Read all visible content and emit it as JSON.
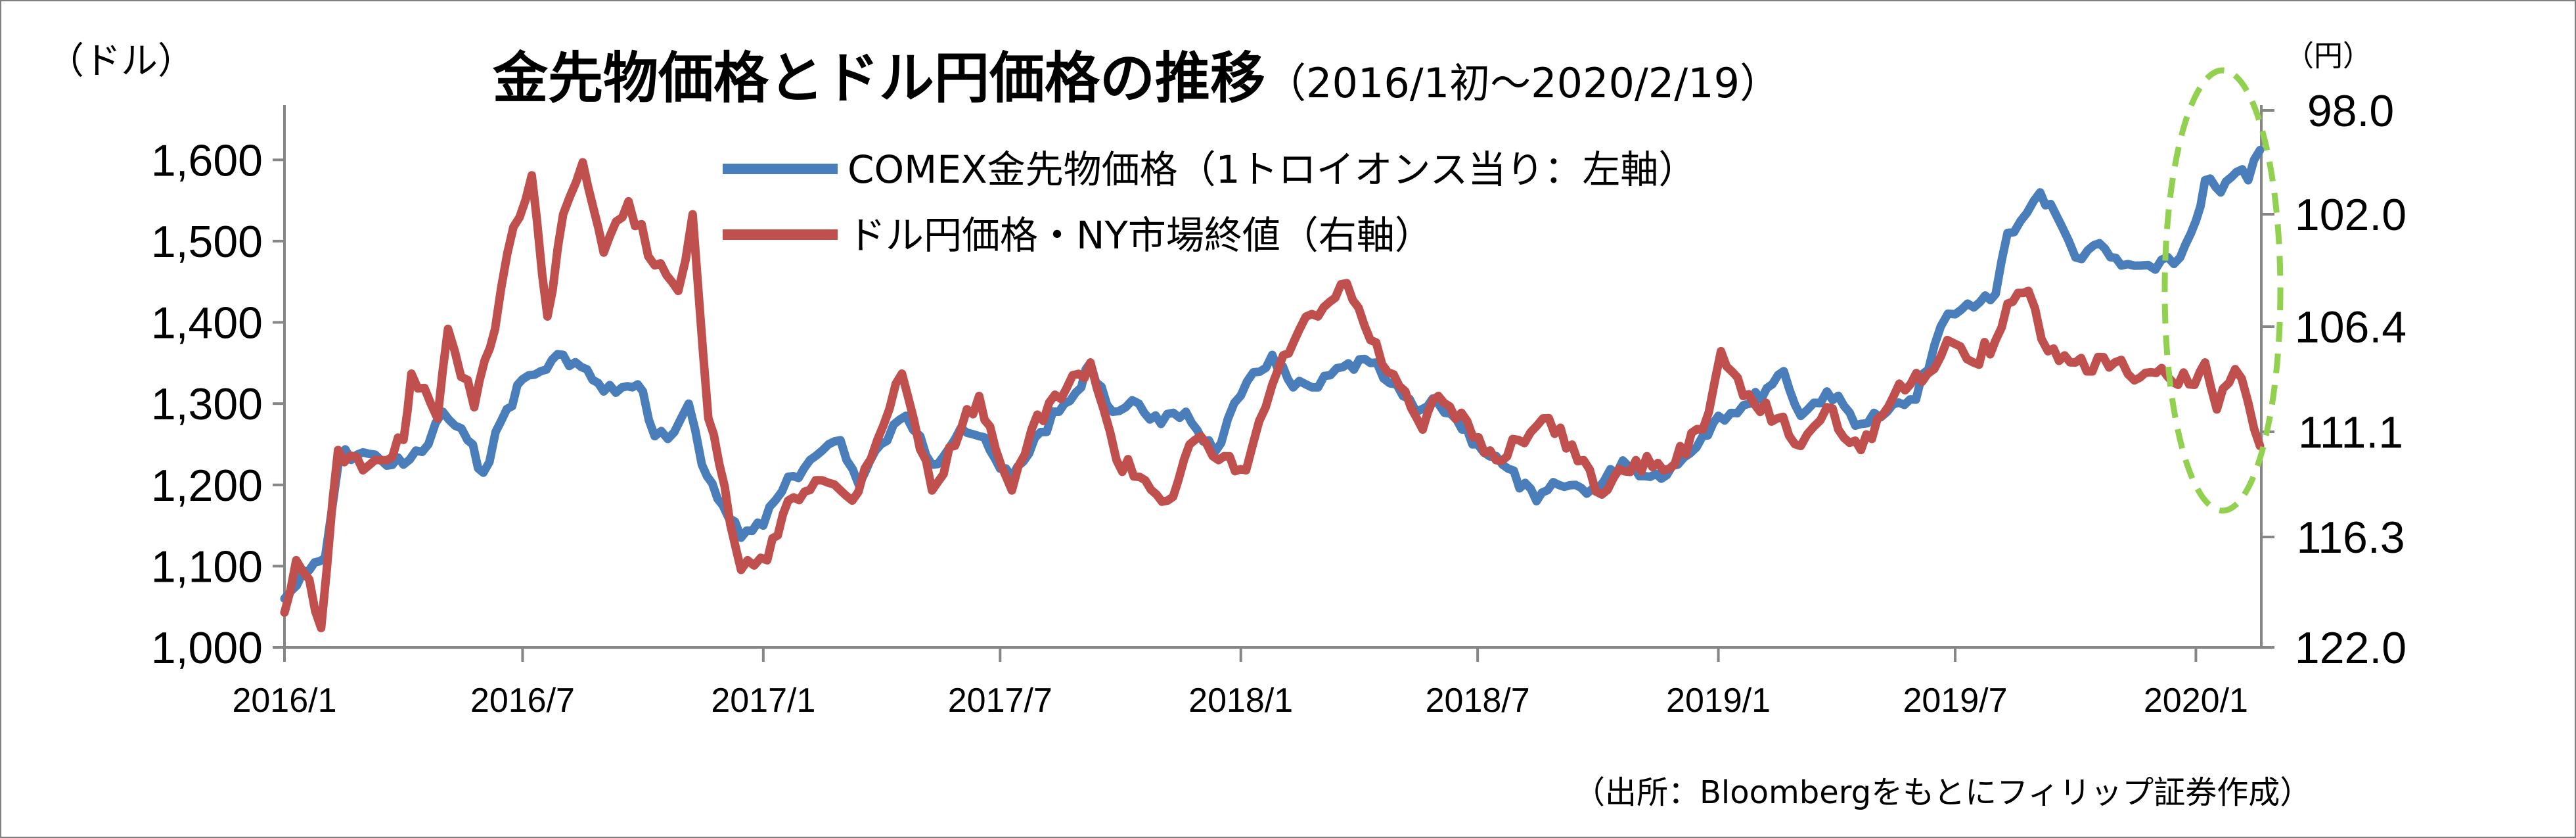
{
  "chart_data": {
    "type": "line",
    "title": "金先物価格とドル円価格の推移",
    "subtitle": "（2016/1初～2020/2/19）",
    "left_unit": "（ドル）",
    "right_unit": "（円）",
    "source": "（出所：Bloombergをもとにフィリップ証券作成）",
    "y_left": {
      "range": [
        1000,
        1650
      ],
      "ticks": [
        1000,
        1100,
        1200,
        1300,
        1400,
        1500,
        1600
      ],
      "tick_labels": [
        "1,000",
        "1,100",
        "1,200",
        "1,300",
        "1,400",
        "1,500",
        "1,600"
      ]
    },
    "y_right": {
      "inverted": true,
      "range": [
        122.0,
        97.0
      ],
      "ticks": [
        122.0,
        116.3,
        111.1,
        106.4,
        102.0,
        98.0
      ],
      "tick_labels": [
        "122.0",
        "116.3",
        "111.1",
        "106.4",
        "102.0",
        "98.0"
      ]
    },
    "x": {
      "range": [
        "2016-01-01",
        "2020-02-19"
      ],
      "ticks": [
        "2016-01-01",
        "2016-07-01",
        "2017-01-01",
        "2017-07-01",
        "2018-01-01",
        "2018-07-01",
        "2019-01-01",
        "2019-07-01",
        "2020-01-01"
      ],
      "tick_labels": [
        "2016/1",
        "2016/7",
        "2017/1",
        "2017/7",
        "2018/1",
        "2018/7",
        "2019/1",
        "2019/7",
        "2020/1"
      ]
    },
    "series": [
      {
        "name": "COMEX金先物価格（1トロイオンス当り：左軸）",
        "axis": "left",
        "color": "#4a7ebb",
        "points": [
          [
            "2016-01-01",
            1060
          ],
          [
            "2016-01-20",
            1095
          ],
          [
            "2016-02-01",
            1110
          ],
          [
            "2016-02-12",
            1235
          ],
          [
            "2016-03-01",
            1240
          ],
          [
            "2016-03-15",
            1230
          ],
          [
            "2016-04-01",
            1225
          ],
          [
            "2016-04-20",
            1250
          ],
          [
            "2016-05-01",
            1290
          ],
          [
            "2016-05-20",
            1255
          ],
          [
            "2016-06-01",
            1215
          ],
          [
            "2016-06-15",
            1280
          ],
          [
            "2016-07-01",
            1330
          ],
          [
            "2016-07-15",
            1340
          ],
          [
            "2016-08-01",
            1360
          ],
          [
            "2016-08-15",
            1345
          ],
          [
            "2016-09-01",
            1315
          ],
          [
            "2016-09-15",
            1320
          ],
          [
            "2016-10-01",
            1315
          ],
          [
            "2016-10-10",
            1260
          ],
          [
            "2016-10-25",
            1265
          ],
          [
            "2016-11-05",
            1300
          ],
          [
            "2016-11-15",
            1225
          ],
          [
            "2016-12-01",
            1175
          ],
          [
            "2016-12-15",
            1135
          ],
          [
            "2017-01-01",
            1150
          ],
          [
            "2017-01-20",
            1210
          ],
          [
            "2017-02-01",
            1220
          ],
          [
            "2017-02-20",
            1250
          ],
          [
            "2017-03-01",
            1255
          ],
          [
            "2017-03-15",
            1200
          ],
          [
            "2017-04-01",
            1250
          ],
          [
            "2017-04-20",
            1285
          ],
          [
            "2017-05-01",
            1260
          ],
          [
            "2017-05-10",
            1225
          ],
          [
            "2017-06-01",
            1270
          ],
          [
            "2017-06-15",
            1260
          ],
          [
            "2017-07-01",
            1220
          ],
          [
            "2017-07-10",
            1210
          ],
          [
            "2017-08-01",
            1265
          ],
          [
            "2017-08-15",
            1290
          ],
          [
            "2017-09-01",
            1320
          ],
          [
            "2017-09-08",
            1350
          ],
          [
            "2017-09-25",
            1290
          ],
          [
            "2017-10-15",
            1300
          ],
          [
            "2017-11-01",
            1275
          ],
          [
            "2017-11-20",
            1290
          ],
          [
            "2017-12-12",
            1240
          ],
          [
            "2018-01-01",
            1310
          ],
          [
            "2018-01-25",
            1360
          ],
          [
            "2018-02-10",
            1320
          ],
          [
            "2018-03-01",
            1320
          ],
          [
            "2018-03-20",
            1345
          ],
          [
            "2018-04-10",
            1350
          ],
          [
            "2018-04-25",
            1325
          ],
          [
            "2018-05-15",
            1290
          ],
          [
            "2018-06-01",
            1300
          ],
          [
            "2018-06-15",
            1280
          ],
          [
            "2018-07-01",
            1250
          ],
          [
            "2018-07-20",
            1225
          ],
          [
            "2018-08-15",
            1180
          ],
          [
            "2018-09-01",
            1200
          ],
          [
            "2018-10-01",
            1195
          ],
          [
            "2018-10-20",
            1230
          ],
          [
            "2018-11-10",
            1210
          ],
          [
            "2018-12-01",
            1225
          ],
          [
            "2018-12-20",
            1260
          ],
          [
            "2019-01-01",
            1285
          ],
          [
            "2019-01-25",
            1300
          ],
          [
            "2019-02-20",
            1340
          ],
          [
            "2019-03-05",
            1285
          ],
          [
            "2019-03-25",
            1315
          ],
          [
            "2019-04-20",
            1275
          ],
          [
            "2019-05-10",
            1290
          ],
          [
            "2019-06-01",
            1305
          ],
          [
            "2019-06-20",
            1395
          ],
          [
            "2019-07-01",
            1410
          ],
          [
            "2019-07-20",
            1425
          ],
          [
            "2019-08-01",
            1435
          ],
          [
            "2019-08-10",
            1510
          ],
          [
            "2019-08-25",
            1535
          ],
          [
            "2019-09-04",
            1560
          ],
          [
            "2019-09-20",
            1520
          ],
          [
            "2019-10-01",
            1480
          ],
          [
            "2019-10-15",
            1495
          ],
          [
            "2019-11-05",
            1470
          ],
          [
            "2019-11-20",
            1470
          ],
          [
            "2019-12-01",
            1465
          ],
          [
            "2019-12-20",
            1480
          ],
          [
            "2020-01-01",
            1525
          ],
          [
            "2020-01-08",
            1575
          ],
          [
            "2020-01-20",
            1560
          ],
          [
            "2020-02-01",
            1585
          ],
          [
            "2020-02-10",
            1575
          ],
          [
            "2020-02-19",
            1612
          ]
        ]
      },
      {
        "name": "ドル円価格・NY市場終値（右軸）",
        "axis": "right",
        "color": "#c0504d",
        "points": [
          [
            "2016-01-01",
            120.2
          ],
          [
            "2016-01-10",
            117.5
          ],
          [
            "2016-01-20",
            118.5
          ],
          [
            "2016-01-29",
            121.0
          ],
          [
            "2016-02-11",
            112.0
          ],
          [
            "2016-03-01",
            113.0
          ],
          [
            "2016-03-15",
            112.5
          ],
          [
            "2016-04-01",
            111.5
          ],
          [
            "2016-04-07",
            108.5
          ],
          [
            "2016-04-27",
            110.5
          ],
          [
            "2016-05-05",
            106.5
          ],
          [
            "2016-05-25",
            110.0
          ],
          [
            "2016-06-10",
            106.5
          ],
          [
            "2016-06-24",
            102.5
          ],
          [
            "2016-07-08",
            100.5
          ],
          [
            "2016-07-20",
            106.0
          ],
          [
            "2016-08-01",
            102.0
          ],
          [
            "2016-08-16",
            100.0
          ],
          [
            "2016-09-01",
            103.5
          ],
          [
            "2016-09-20",
            101.5
          ],
          [
            "2016-10-10",
            104.0
          ],
          [
            "2016-10-28",
            105.0
          ],
          [
            "2016-11-08",
            102.0
          ],
          [
            "2016-11-20",
            110.5
          ],
          [
            "2016-12-15",
            118.0
          ],
          [
            "2017-01-04",
            117.5
          ],
          [
            "2017-01-20",
            114.5
          ],
          [
            "2017-02-10",
            113.5
          ],
          [
            "2017-03-01",
            114.0
          ],
          [
            "2017-03-10",
            114.5
          ],
          [
            "2017-04-17",
            108.5
          ],
          [
            "2017-05-10",
            114.0
          ],
          [
            "2017-06-01",
            111.0
          ],
          [
            "2017-06-15",
            109.5
          ],
          [
            "2017-07-10",
            114.0
          ],
          [
            "2017-07-25",
            111.0
          ],
          [
            "2017-09-08",
            108.0
          ],
          [
            "2017-09-28",
            112.5
          ],
          [
            "2017-10-20",
            113.5
          ],
          [
            "2017-11-06",
            114.5
          ],
          [
            "2017-11-27",
            111.5
          ],
          [
            "2017-12-15",
            112.5
          ],
          [
            "2018-01-05",
            113.0
          ],
          [
            "2018-01-25",
            109.0
          ],
          [
            "2018-02-15",
            106.5
          ],
          [
            "2018-03-01",
            106.0
          ],
          [
            "2018-03-23",
            104.7
          ],
          [
            "2018-04-10",
            107.0
          ],
          [
            "2018-05-20",
            111.0
          ],
          [
            "2018-06-01",
            109.5
          ],
          [
            "2018-07-15",
            112.5
          ],
          [
            "2018-08-01",
            111.5
          ],
          [
            "2018-08-20",
            110.5
          ],
          [
            "2018-09-20",
            112.5
          ],
          [
            "2018-10-04",
            114.2
          ],
          [
            "2018-10-30",
            112.5
          ],
          [
            "2018-11-20",
            113.0
          ],
          [
            "2018-12-20",
            111.0
          ],
          [
            "2019-01-03",
            107.5
          ],
          [
            "2019-01-20",
            109.5
          ],
          [
            "2019-02-15",
            110.5
          ],
          [
            "2019-03-05",
            111.8
          ],
          [
            "2019-03-25",
            110.0
          ],
          [
            "2019-04-20",
            112.0
          ],
          [
            "2019-05-15",
            109.5
          ],
          [
            "2019-06-10",
            108.5
          ],
          [
            "2019-06-25",
            107.0
          ],
          [
            "2019-07-15",
            108.0
          ],
          [
            "2019-08-01",
            107.0
          ],
          [
            "2019-08-10",
            105.5
          ],
          [
            "2019-08-26",
            105.0
          ],
          [
            "2019-09-10",
            107.5
          ],
          [
            "2019-10-01",
            108.0
          ],
          [
            "2019-10-31",
            108.0
          ],
          [
            "2019-11-15",
            108.8
          ],
          [
            "2019-12-10",
            108.6
          ],
          [
            "2019-12-31",
            109.0
          ],
          [
            "2020-01-08",
            108.0
          ],
          [
            "2020-01-17",
            110.1
          ],
          [
            "2020-01-31",
            108.3
          ],
          [
            "2020-02-10",
            109.8
          ],
          [
            "2020-02-19",
            111.8
          ]
        ]
      }
    ],
    "annotation": "green dashed ellipse around 2020/1–2020/2"
  }
}
